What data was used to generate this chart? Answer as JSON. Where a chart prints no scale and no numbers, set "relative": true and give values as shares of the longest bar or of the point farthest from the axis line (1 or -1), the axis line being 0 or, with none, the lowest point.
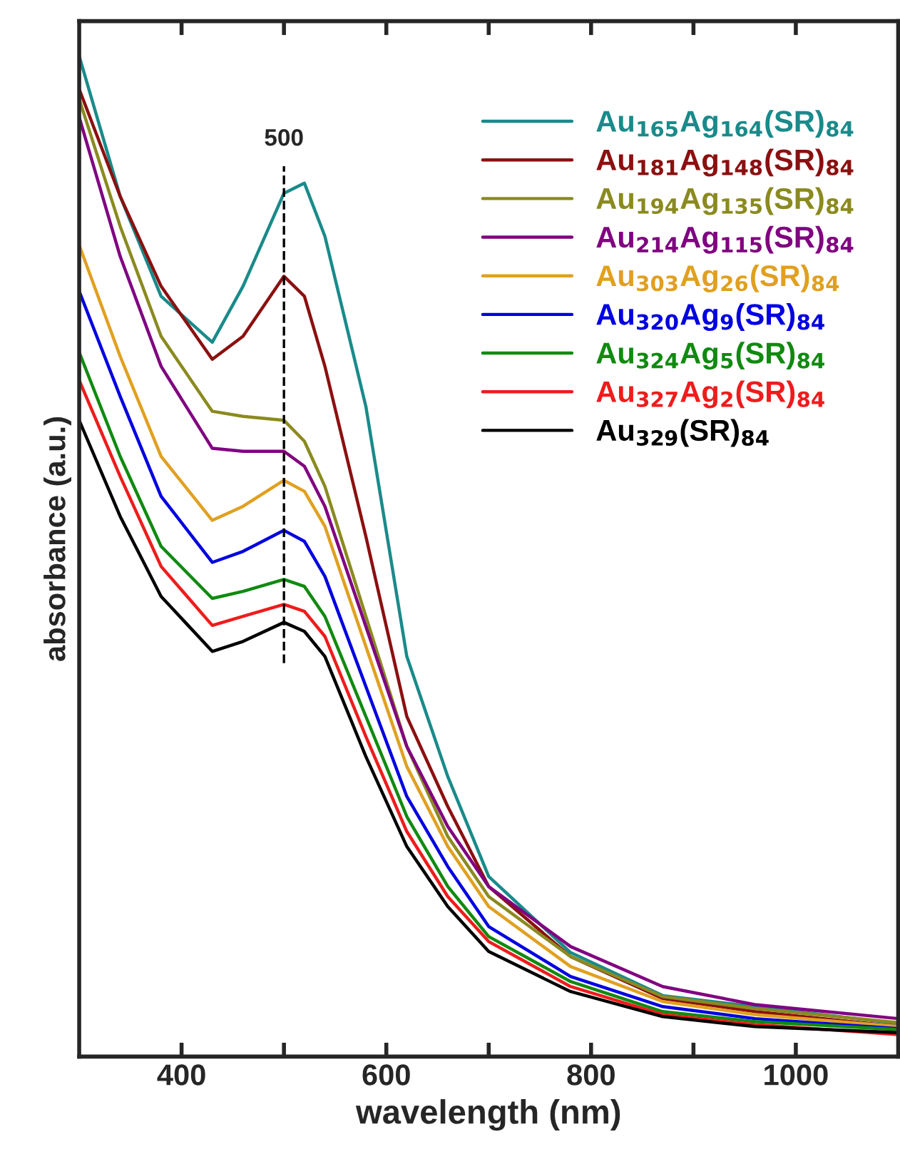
{
  "chart_data": {
    "type": "line",
    "xlabel": "wavelength (nm)",
    "ylabel": "absorbance (a.u.)",
    "relative": true,
    "x": [
      300,
      340,
      380,
      430,
      460,
      500,
      520,
      540,
      580,
      620,
      660,
      700,
      780,
      870,
      960,
      1100
    ],
    "xlim": [
      300,
      1100
    ],
    "xticks": [
      400,
      {
        "value": 500,
        "label": null
      },
      600,
      {
        "value": 700,
        "label": null
      },
      800,
      {
        "value": 900,
        "label": null
      },
      1000
    ],
    "legend": "top right",
    "grid": false,
    "line_style": "solid",
    "marker": "none",
    "ref_lines": [
      {
        "axis": "x",
        "value": 500,
        "label": "500",
        "line_style": "dashed",
        "color": "#000000"
      }
    ],
    "series": [
      {
        "name": "Au$_{165}$Ag$_{164}$(SR)$_{84}$",
        "color": "#1a8a8a",
        "values": [
          1.0,
          0.86,
          0.76,
          0.714,
          0.77,
          0.863,
          0.873,
          0.82,
          0.65,
          0.4,
          0.28,
          0.18,
          0.104,
          0.061,
          0.05,
          0.033
        ]
      },
      {
        "name": "Au$_{181}$Ag$_{148}$(SR)$_{84}$",
        "color": "#8b1010",
        "values": [
          0.967,
          0.86,
          0.77,
          0.697,
          0.72,
          0.78,
          0.76,
          0.69,
          0.52,
          0.34,
          0.25,
          0.17,
          0.1,
          0.058,
          0.045,
          0.03
        ]
      },
      {
        "name": "Au$_{194}$Ag$_{135}$(SR)$_{84}$",
        "color": "#8a8a20",
        "values": [
          0.957,
          0.83,
          0.72,
          0.645,
          0.64,
          0.636,
          0.615,
          0.57,
          0.44,
          0.31,
          0.22,
          0.16,
          0.1,
          0.06,
          0.048,
          0.034
        ]
      },
      {
        "name": "Au$_{214}$Ag$_{115}$(SR)$_{84}$",
        "color": "#800080",
        "values": [
          0.939,
          0.8,
          0.69,
          0.608,
          0.605,
          0.605,
          0.59,
          0.55,
          0.43,
          0.31,
          0.23,
          0.17,
          0.11,
          0.07,
          0.052,
          0.038
        ]
      },
      {
        "name": "Au$_{303}$Ag$_{26}$(SR)$_{84}$",
        "color": "#e0a020",
        "values": [
          0.811,
          0.7,
          0.6,
          0.536,
          0.55,
          0.576,
          0.565,
          0.53,
          0.41,
          0.29,
          0.21,
          0.15,
          0.09,
          0.055,
          0.042,
          0.03
        ]
      },
      {
        "name": "Au$_{320}$Ag$_{9}$(SR)$_{84}$",
        "color": "#0000e0",
        "values": [
          0.765,
          0.66,
          0.56,
          0.494,
          0.505,
          0.526,
          0.515,
          0.48,
          0.37,
          0.26,
          0.19,
          0.13,
          0.08,
          0.05,
          0.038,
          0.028
        ]
      },
      {
        "name": "Au$_{324}$Ag$_{5}$(SR)$_{84}$",
        "color": "#108a10",
        "values": [
          0.704,
          0.6,
          0.51,
          0.458,
          0.465,
          0.477,
          0.47,
          0.44,
          0.34,
          0.24,
          0.17,
          0.12,
          0.075,
          0.045,
          0.035,
          0.027
        ]
      },
      {
        "name": "Au$_{327}$Ag$_{2}$(SR)$_{84}$",
        "color": "#ee1c1c",
        "values": [
          0.676,
          0.58,
          0.49,
          0.431,
          0.44,
          0.452,
          0.445,
          0.42,
          0.32,
          0.225,
          0.16,
          0.115,
          0.07,
          0.042,
          0.032,
          0.022
        ]
      },
      {
        "name": "Au$_{329}$(SR)$_{84}$",
        "color": "#000000",
        "values": [
          0.636,
          0.54,
          0.46,
          0.405,
          0.415,
          0.434,
          0.425,
          0.4,
          0.3,
          0.21,
          0.15,
          0.105,
          0.065,
          0.04,
          0.03,
          0.024
        ]
      }
    ]
  }
}
